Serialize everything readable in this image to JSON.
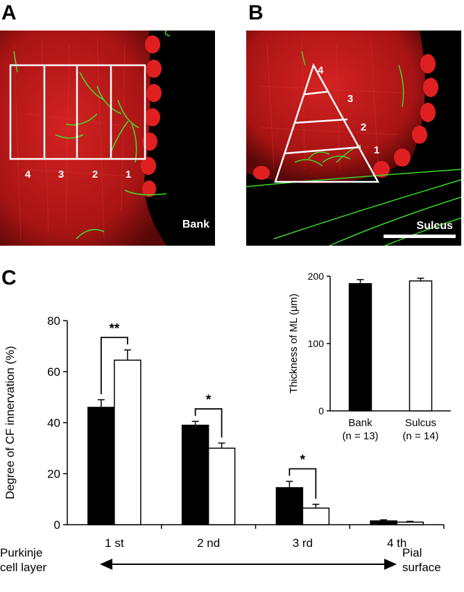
{
  "panels": {
    "a": {
      "letter": "A",
      "label": "Bank",
      "region_numbers": [
        "4",
        "3",
        "2",
        "1"
      ]
    },
    "b": {
      "letter": "B",
      "label": "Sulcus",
      "region_numbers": [
        "4",
        "3",
        "2",
        "1"
      ]
    },
    "c": {
      "letter": "C"
    }
  },
  "colors": {
    "bank": "#000000",
    "sulcus": "#ffffff",
    "tissue_red": "#c81e1e",
    "fiber_green": "#3cdc28"
  },
  "chart_data": [
    {
      "type": "bar",
      "categories": [
        "1 st",
        "2 nd",
        "3 rd",
        "4 th"
      ],
      "series": [
        {
          "values": [
            46,
            39,
            14.5,
            1.5
          ],
          "errors": [
            3,
            1.5,
            2.5,
            0.4
          ]
        },
        {
          "values": [
            64.5,
            30,
            6.5,
            1
          ],
          "errors": [
            4,
            2,
            1.5,
            0.3
          ]
        }
      ],
      "ylabel": "Degree of CF innervation (%)",
      "xlabel": "",
      "ylim": [
        0,
        80
      ],
      "yticks": [
        0,
        20,
        40,
        60,
        80
      ],
      "significance": [
        "**",
        "*",
        "*",
        ""
      ],
      "axis_ends": {
        "left_line1": "Purkinje",
        "left_line2": "cell layer",
        "right_line1": "Pial",
        "right_line2": "surface"
      },
      "grid": false
    },
    {
      "type": "bar",
      "categories": [
        "Bank",
        "Sulcus"
      ],
      "category_n": [
        "(n = 13)",
        "(n = 14)"
      ],
      "values": [
        189,
        193
      ],
      "errors": [
        6,
        4
      ],
      "ylabel": "Thickness of ML (μm)",
      "ylim": [
        0,
        200
      ],
      "yticks": [
        0,
        100,
        200
      ],
      "grid": false
    }
  ]
}
